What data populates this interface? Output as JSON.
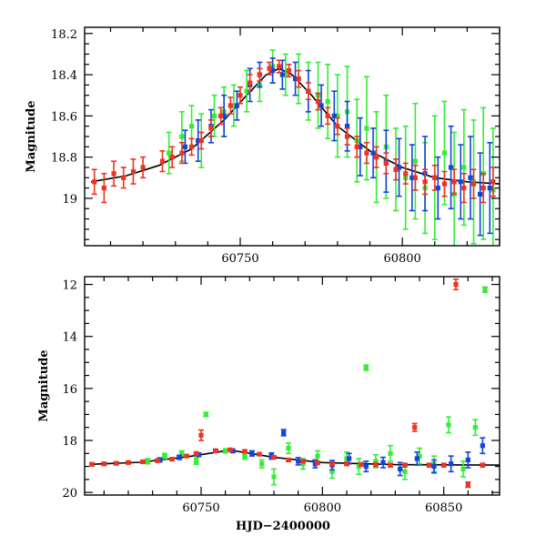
{
  "chart_data": [
    {
      "type": "scatter",
      "panel": "top",
      "title": "",
      "xlabel": "",
      "ylabel": "Magnitude",
      "xlim": [
        60702,
        60830
      ],
      "ylim": [
        19.23,
        18.17
      ],
      "y_inverted": true,
      "xticks": [
        60750,
        60800
      ],
      "yticks": [
        18.2,
        18.4,
        18.6,
        18.8,
        19
      ],
      "ytick_labels": [
        "18.2",
        "18.4",
        "18.6",
        "18.8",
        "19"
      ],
      "xtick_labels": [
        "60750",
        "60800"
      ],
      "grid": false,
      "legend": "none",
      "model_curve": {
        "color": "#000000",
        "x": [
          60704,
          60715,
          60725,
          60735,
          60745,
          60752,
          60758,
          60762,
          60766,
          60772,
          60780,
          60790,
          60800,
          60810,
          60820,
          60830
        ],
        "y": [
          18.92,
          18.89,
          18.84,
          18.76,
          18.62,
          18.5,
          18.4,
          18.37,
          18.4,
          18.5,
          18.65,
          18.77,
          18.85,
          18.9,
          18.92,
          18.93
        ]
      },
      "series": [
        {
          "color": "#33ee33",
          "x": [
            60728,
            60732,
            60735,
            60738,
            60742,
            60745,
            60748,
            60752,
            60756,
            60760,
            60764,
            60768,
            60771,
            60774,
            60777,
            60780,
            60783,
            60786,
            60789,
            60792,
            60795,
            60798,
            60801,
            60804,
            60807,
            60810,
            60813,
            60816,
            60819,
            60822,
            60825,
            60828
          ],
          "y": [
            18.78,
            18.7,
            18.65,
            18.72,
            18.6,
            18.58,
            18.55,
            18.48,
            18.45,
            18.36,
            18.4,
            18.42,
            18.48,
            18.5,
            18.53,
            18.6,
            18.58,
            18.72,
            18.66,
            18.8,
            18.75,
            18.86,
            18.9,
            18.82,
            18.95,
            18.9,
            18.78,
            18.98,
            18.85,
            18.92,
            18.88,
            18.96
          ],
          "yerr": [
            0.1,
            0.12,
            0.1,
            0.13,
            0.1,
            0.12,
            0.1,
            0.1,
            0.08,
            0.08,
            0.1,
            0.12,
            0.14,
            0.16,
            0.18,
            0.2,
            0.22,
            0.2,
            0.25,
            0.22,
            0.25,
            0.2,
            0.25,
            0.28,
            0.22,
            0.3,
            0.25,
            0.3,
            0.28,
            0.3,
            0.32,
            0.3
          ]
        },
        {
          "color": "#1144dd",
          "x": [
            60733,
            60737,
            60741,
            60745,
            60749,
            60753,
            60756,
            60760,
            60763,
            60767,
            60771,
            60775,
            60779,
            60783,
            60787,
            60791,
            60795,
            60799,
            60803,
            60807,
            60811,
            60815,
            60818,
            60821,
            60824,
            60827
          ],
          "y": [
            18.75,
            18.72,
            18.65,
            18.6,
            18.55,
            18.45,
            18.4,
            18.38,
            18.4,
            18.42,
            18.48,
            18.55,
            18.6,
            18.65,
            18.75,
            18.78,
            18.82,
            18.85,
            18.9,
            18.88,
            18.95,
            18.85,
            18.92,
            18.9,
            18.98,
            18.95
          ],
          "yerr": [
            0.08,
            0.1,
            0.08,
            0.1,
            0.07,
            0.08,
            0.06,
            0.06,
            0.07,
            0.08,
            0.1,
            0.1,
            0.12,
            0.12,
            0.14,
            0.12,
            0.15,
            0.14,
            0.16,
            0.18,
            0.15,
            0.2,
            0.18,
            0.2,
            0.2,
            0.22
          ]
        },
        {
          "color": "#ee3322",
          "x": [
            60705,
            60708,
            60711,
            60714,
            60717,
            60720,
            60726,
            60729,
            60732,
            60735,
            60738,
            60741,
            60744,
            60747,
            60750,
            60753,
            60756,
            60759,
            60762,
            60765,
            60768,
            60771,
            60774,
            60777,
            60780,
            60783,
            60786,
            60789,
            60792,
            60795,
            60798,
            60801,
            60804,
            60807,
            60810,
            60813,
            60816,
            60819,
            60822,
            60825,
            60828
          ],
          "y": [
            18.92,
            18.95,
            18.88,
            18.9,
            18.87,
            18.85,
            18.82,
            18.8,
            18.78,
            18.75,
            18.72,
            18.66,
            18.6,
            18.55,
            18.5,
            18.44,
            18.4,
            18.37,
            18.36,
            18.38,
            18.42,
            18.48,
            18.53,
            18.6,
            18.65,
            18.7,
            18.75,
            18.78,
            18.8,
            18.83,
            18.86,
            18.88,
            18.9,
            18.92,
            18.9,
            18.93,
            18.92,
            18.95,
            18.93,
            18.95,
            18.92
          ],
          "yerr": [
            0.06,
            0.07,
            0.06,
            0.05,
            0.06,
            0.05,
            0.05,
            0.05,
            0.05,
            0.04,
            0.04,
            0.04,
            0.04,
            0.04,
            0.04,
            0.04,
            0.03,
            0.03,
            0.03,
            0.03,
            0.04,
            0.04,
            0.04,
            0.04,
            0.04,
            0.04,
            0.05,
            0.05,
            0.05,
            0.05,
            0.05,
            0.05,
            0.06,
            0.06,
            0.06,
            0.06,
            0.06,
            0.07,
            0.07,
            0.07,
            0.07
          ]
        }
      ]
    },
    {
      "type": "scatter",
      "panel": "bottom",
      "title": "",
      "xlabel": "HJD−2400000",
      "ylabel": "Magnitude",
      "xlim": [
        60702,
        60873
      ],
      "ylim": [
        20.1,
        11.7
      ],
      "y_inverted": true,
      "xticks": [
        60750,
        60800,
        60850
      ],
      "yticks": [
        12,
        14,
        16,
        18,
        20
      ],
      "ytick_labels": [
        "12",
        "14",
        "16",
        "18",
        "20"
      ],
      "xtick_labels": [
        "60750",
        "60800",
        "60850"
      ],
      "grid": false,
      "legend": "none",
      "model_curve": {
        "color": "#000000",
        "x": [
          60704,
          60725,
          60745,
          60762,
          60780,
          60800,
          60830,
          60873
        ],
        "y": [
          18.92,
          18.84,
          18.62,
          18.37,
          18.65,
          18.85,
          18.93,
          18.95
        ]
      },
      "series": [
        {
          "color": "#33ee33",
          "x": [
            60728,
            60735,
            60742,
            60748,
            60752,
            60760,
            60768,
            60775,
            60780,
            60786,
            60792,
            60798,
            60804,
            60810,
            60815,
            60818,
            60822,
            60828,
            60834,
            60840,
            60846,
            60852,
            60858,
            60863,
            60867
          ],
          "y": [
            18.8,
            18.6,
            18.5,
            18.8,
            17.0,
            18.4,
            18.6,
            18.9,
            19.4,
            18.3,
            18.9,
            18.6,
            19.2,
            18.7,
            19.0,
            15.2,
            18.8,
            18.5,
            19.2,
            18.6,
            18.9,
            17.4,
            19.1,
            17.5,
            12.2
          ],
          "yerr": [
            0.1,
            0.1,
            0.1,
            0.12,
            0.08,
            0.08,
            0.12,
            0.15,
            0.3,
            0.2,
            0.2,
            0.2,
            0.25,
            0.25,
            0.3,
            0.1,
            0.25,
            0.3,
            0.3,
            0.3,
            0.3,
            0.3,
            0.3,
            0.3,
            0.1
          ]
        },
        {
          "color": "#1144dd",
          "x": [
            60733,
            60741,
            60749,
            60756,
            60763,
            60771,
            60779,
            60784,
            60790,
            60797,
            60804,
            60811,
            60818,
            60825,
            60832,
            60839,
            60846,
            60853,
            60860,
            60866
          ],
          "y": [
            18.75,
            18.65,
            18.55,
            18.4,
            18.4,
            18.5,
            18.6,
            17.7,
            18.8,
            18.9,
            18.95,
            18.7,
            19.0,
            18.85,
            19.1,
            18.7,
            19.0,
            18.9,
            18.75,
            18.2
          ],
          "yerr": [
            0.08,
            0.08,
            0.07,
            0.06,
            0.07,
            0.1,
            0.12,
            0.12,
            0.14,
            0.15,
            0.18,
            0.2,
            0.2,
            0.2,
            0.25,
            0.25,
            0.25,
            0.3,
            0.3,
            0.3
          ]
        },
        {
          "color": "#ee3322",
          "x": [
            60705,
            60710,
            60715,
            60720,
            60726,
            60732,
            60738,
            60744,
            60748,
            60750,
            60756,
            60762,
            60768,
            60774,
            60780,
            60786,
            60792,
            60798,
            60804,
            60810,
            60816,
            60822,
            60828,
            60834,
            60838,
            60844,
            60850,
            60855,
            60860,
            60866
          ],
          "y": [
            18.92,
            18.9,
            18.88,
            18.85,
            18.82,
            18.78,
            18.72,
            18.6,
            18.5,
            17.8,
            18.4,
            18.36,
            18.42,
            18.53,
            18.65,
            18.75,
            18.8,
            18.86,
            18.9,
            18.9,
            18.92,
            18.93,
            18.95,
            18.95,
            17.5,
            18.95,
            18.95,
            12.0,
            19.7,
            18.95
          ],
          "yerr": [
            0.06,
            0.06,
            0.05,
            0.05,
            0.05,
            0.05,
            0.04,
            0.04,
            0.04,
            0.2,
            0.03,
            0.03,
            0.04,
            0.04,
            0.04,
            0.05,
            0.05,
            0.05,
            0.06,
            0.06,
            0.06,
            0.07,
            0.07,
            0.07,
            0.15,
            0.07,
            0.07,
            0.2,
            0.1,
            0.07
          ]
        }
      ]
    }
  ]
}
